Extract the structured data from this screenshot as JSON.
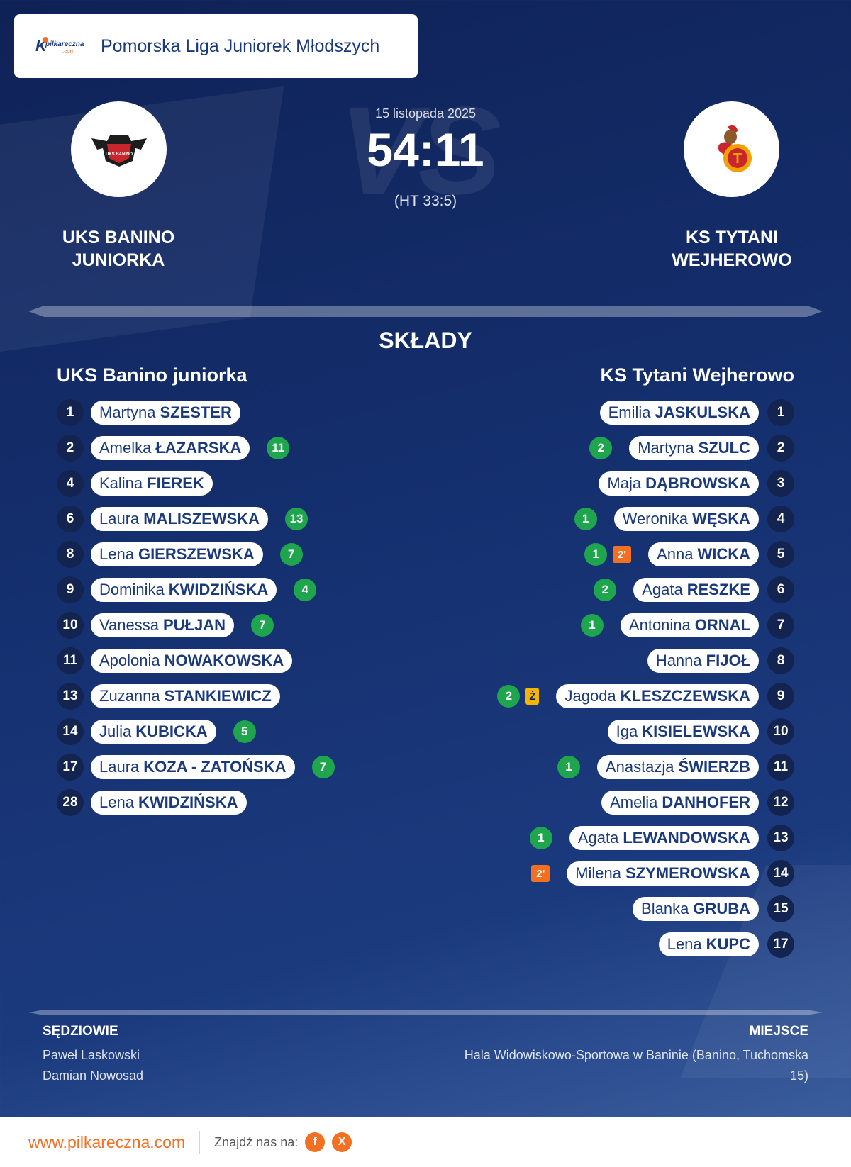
{
  "league": {
    "logo_k": "K",
    "logo_text": "pilkareczna",
    "logo_sub": ".com",
    "name": "Pomorska Liga Juniorek Młodszych"
  },
  "match": {
    "date": "15 listopada 2025",
    "score": "54:11",
    "halftime": "(HT 33:5)",
    "vs_text": "VS"
  },
  "home": {
    "name_line1": "UKS BANINO",
    "name_line2": "JUNIORKA",
    "crest_text": "UKS BANINO",
    "lineup_title": "UKS Banino juniorka"
  },
  "away": {
    "name_line1": "KS TYTANI",
    "name_line2": "WEJHEROWO",
    "crest_letter": "T",
    "lineup_title": "KS Tytani Wejherowo"
  },
  "section_title": "SKŁADY",
  "home_players": [
    {
      "no": "1",
      "first": "Martyna",
      "last": "SZESTER",
      "goals": null
    },
    {
      "no": "2",
      "first": "Amelka",
      "last": "ŁAZARSKA",
      "goals": "11"
    },
    {
      "no": "4",
      "first": "Kalina",
      "last": "FIEREK",
      "goals": null
    },
    {
      "no": "6",
      "first": "Laura",
      "last": "MALISZEWSKA",
      "goals": "13"
    },
    {
      "no": "8",
      "first": "Lena",
      "last": "GIERSZEWSKA",
      "goals": "7"
    },
    {
      "no": "9",
      "first": "Dominika",
      "last": "KWIDZIŃSKA",
      "goals": "4"
    },
    {
      "no": "10",
      "first": "Vanessa",
      "last": "PUŁJAN",
      "goals": "7"
    },
    {
      "no": "11",
      "first": "Apolonia",
      "last": "NOWAKOWSKA",
      "goals": null
    },
    {
      "no": "13",
      "first": "Zuzanna",
      "last": "STANKIEWICZ",
      "goals": null
    },
    {
      "no": "14",
      "first": "Julia",
      "last": "KUBICKA",
      "goals": "5"
    },
    {
      "no": "17",
      "first": "Laura",
      "last": "KOZA - ZATOŃSKA",
      "goals": "7"
    },
    {
      "no": "28",
      "first": "Lena",
      "last": "KWIDZIŃSKA",
      "goals": null
    }
  ],
  "away_players": [
    {
      "no": "1",
      "first": "Emilia",
      "last": "JASKULSKA",
      "goals": null,
      "badge": null
    },
    {
      "no": "2",
      "first": "Martyna",
      "last": "SZULC",
      "goals": "2",
      "badge": null
    },
    {
      "no": "3",
      "first": "Maja",
      "last": "DĄBROWSKA",
      "goals": null,
      "badge": null
    },
    {
      "no": "4",
      "first": "Weronika",
      "last": "WĘSKA",
      "goals": "1",
      "badge": null
    },
    {
      "no": "5",
      "first": "Anna",
      "last": "WICKA",
      "goals": "1",
      "badge": {
        "text": "2'",
        "type": "susp"
      }
    },
    {
      "no": "6",
      "first": "Agata",
      "last": "RESZKE",
      "goals": "2",
      "badge": null
    },
    {
      "no": "7",
      "first": "Antonina",
      "last": "ORNAL",
      "goals": "1",
      "badge": null
    },
    {
      "no": "8",
      "first": "Hanna",
      "last": "FIJOŁ",
      "goals": null,
      "badge": null
    },
    {
      "no": "9",
      "first": "Jagoda",
      "last": "KLESZCZEWSKA",
      "goals": "2",
      "badge": {
        "text": "Ż",
        "type": "card"
      }
    },
    {
      "no": "10",
      "first": "Iga",
      "last": "KISIELEWSKA",
      "goals": null,
      "badge": null
    },
    {
      "no": "11",
      "first": "Anastazja",
      "last": "ŚWIERZB",
      "goals": "1",
      "badge": null
    },
    {
      "no": "12",
      "first": "Amelia",
      "last": "DANHOFER",
      "goals": null,
      "badge": null
    },
    {
      "no": "13",
      "first": "Agata",
      "last": "LEWANDOWSKA",
      "goals": "1",
      "badge": null
    },
    {
      "no": "14",
      "first": "Milena",
      "last": "SZYMEROWSKA",
      "goals": null,
      "badge": {
        "text": "2'",
        "type": "susp"
      }
    },
    {
      "no": "15",
      "first": "Blanka",
      "last": "GRUBA",
      "goals": null,
      "badge": null
    },
    {
      "no": "17",
      "first": "Lena",
      "last": "KUPC",
      "goals": null,
      "badge": null
    }
  ],
  "referees": {
    "heading": "SĘDZIOWIE",
    "names": [
      "Paweł Laskowski",
      "Damian Nowosad"
    ]
  },
  "venue": {
    "heading": "MIEJSCE",
    "text": "Hala Widowiskowo-Sportowa w Baninie (Banino, Tuchomska 15)"
  },
  "footer": {
    "site": "www.pilkareczna.com",
    "find_label": "Znajdź nas na:",
    "social": [
      {
        "icon": "facebook-icon",
        "glyph": "f"
      },
      {
        "icon": "x-icon",
        "glyph": "X"
      }
    ]
  },
  "colors": {
    "background": "#15306f",
    "accent": "#f36f21",
    "goal_badge": "#1ea54d",
    "suspension_badge": "#f36f21",
    "yellow_card": "#f4b400",
    "number_circle": "#12244f"
  }
}
